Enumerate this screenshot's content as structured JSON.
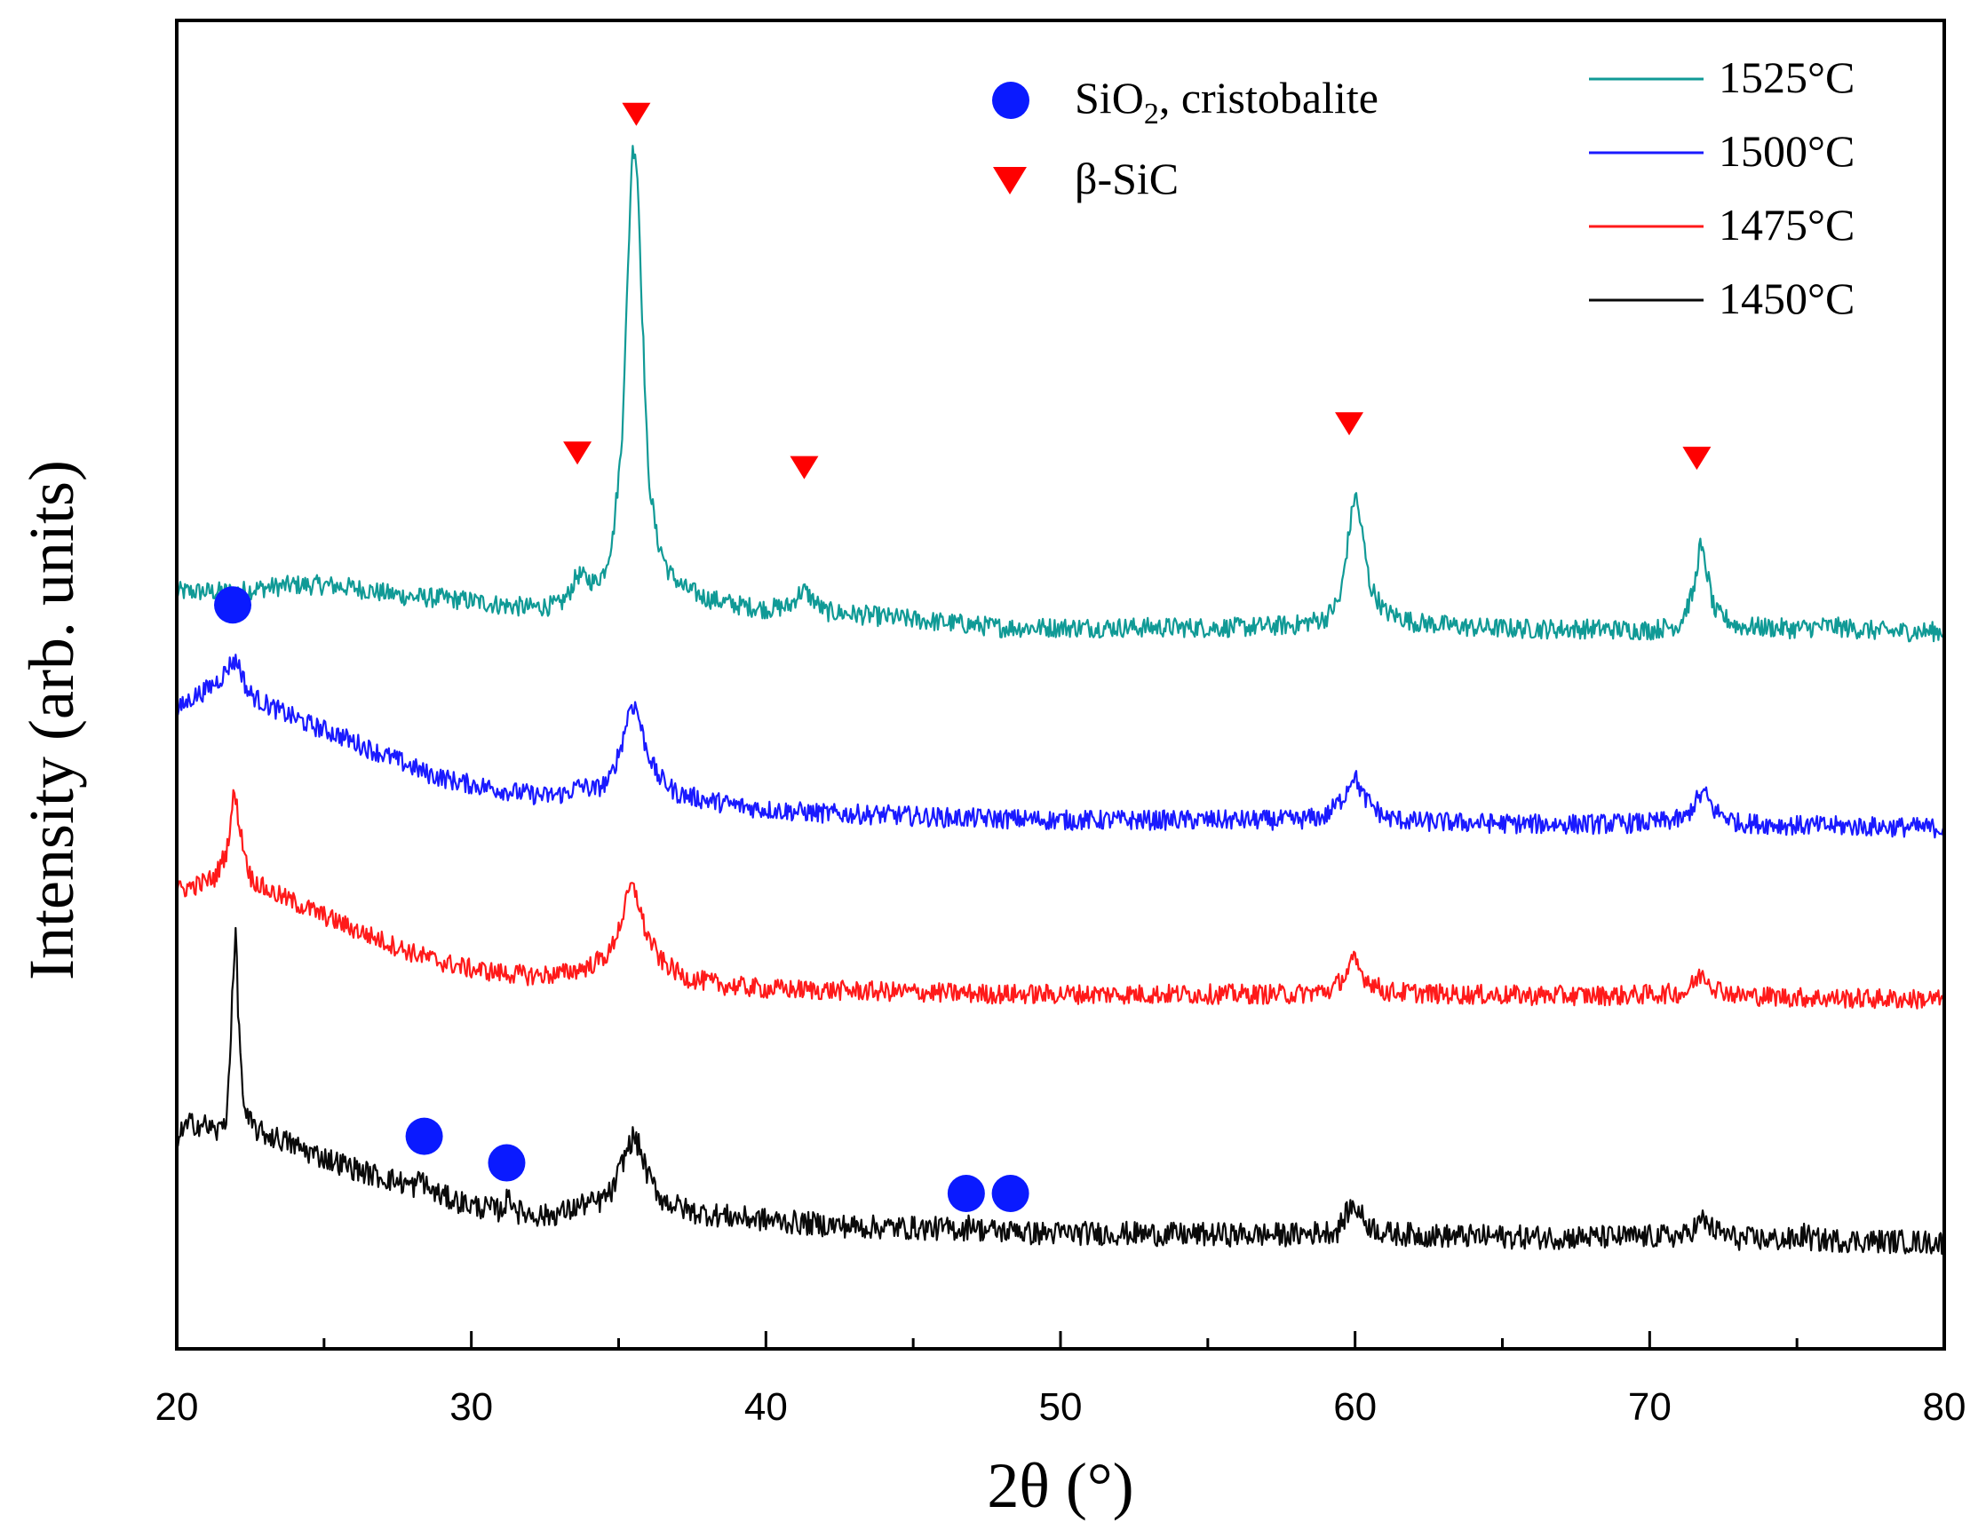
{
  "chart_data": {
    "type": "line",
    "title": "",
    "xlabel": "2θ (°)",
    "ylabel": "Intensity (arb. units)",
    "xlim": [
      20,
      80
    ],
    "ylim": [
      0,
      100
    ],
    "x_ticks": [
      "20",
      "30",
      "40",
      "50",
      "60",
      "70",
      "80"
    ],
    "legend_position": "top-right",
    "series": [
      {
        "name": "1525",
        "unit": "°C",
        "color": "#109a96",
        "offset": 59.0,
        "points": [
          [
            20,
            57
          ],
          [
            21,
            57
          ],
          [
            22,
            57
          ],
          [
            23,
            57.3
          ],
          [
            24,
            57.5
          ],
          [
            25,
            57.5
          ],
          [
            26,
            57.3
          ],
          [
            27,
            56.9
          ],
          [
            28,
            56.6
          ],
          [
            29,
            56.5
          ],
          [
            30,
            56.3
          ],
          [
            31,
            56.0
          ],
          [
            32,
            55.8
          ],
          [
            33,
            56.0
          ],
          [
            33.3,
            56.8
          ],
          [
            33.6,
            58.3
          ],
          [
            33.9,
            58.0
          ],
          [
            34.2,
            57.7
          ],
          [
            34.5,
            58.5
          ],
          [
            34.8,
            61
          ],
          [
            35.1,
            68
          ],
          [
            35.3,
            80
          ],
          [
            35.45,
            90
          ],
          [
            35.55,
            90.5
          ],
          [
            35.65,
            88
          ],
          [
            35.8,
            78
          ],
          [
            36.0,
            66
          ],
          [
            36.3,
            61
          ],
          [
            36.7,
            58.5
          ],
          [
            37.2,
            57.3
          ],
          [
            38,
            56.5
          ],
          [
            39,
            56.0
          ],
          [
            40,
            55.7
          ],
          [
            40.8,
            55.9
          ],
          [
            41.1,
            56.8
          ],
          [
            41.3,
            57.1
          ],
          [
            41.6,
            56.4
          ],
          [
            42,
            55.5
          ],
          [
            44,
            55.1
          ],
          [
            46,
            54.7
          ],
          [
            48,
            54.3
          ],
          [
            50,
            54.3
          ],
          [
            52,
            54.3
          ],
          [
            54,
            54.3
          ],
          [
            56,
            54.3
          ],
          [
            58,
            54.5
          ],
          [
            59,
            55.0
          ],
          [
            59.5,
            56.5
          ],
          [
            59.8,
            61.5
          ],
          [
            60.0,
            64.5
          ],
          [
            60.2,
            62.0
          ],
          [
            60.5,
            57.5
          ],
          [
            61,
            55.5
          ],
          [
            62,
            54.7
          ],
          [
            64,
            54.3
          ],
          [
            66,
            54.2
          ],
          [
            68,
            54.2
          ],
          [
            70,
            54.1
          ],
          [
            71,
            54.5
          ],
          [
            71.5,
            57.0
          ],
          [
            71.7,
            60.5
          ],
          [
            71.9,
            59.0
          ],
          [
            72.2,
            55.5
          ],
          [
            73,
            54.4
          ],
          [
            75,
            54.2
          ],
          [
            76,
            54.4
          ],
          [
            78,
            54.0
          ],
          [
            80,
            54.0
          ]
        ]
      },
      {
        "name": "1500",
        "unit": "°C",
        "color": "#1a1aff",
        "offset": 45.0,
        "points": [
          [
            20,
            48
          ],
          [
            20.5,
            49
          ],
          [
            21,
            49.6
          ],
          [
            21.5,
            50.5
          ],
          [
            21.9,
            51.8
          ],
          [
            22.1,
            51.6
          ],
          [
            22.4,
            49.5
          ],
          [
            22.8,
            48.8
          ],
          [
            23.5,
            48.0
          ],
          [
            24.5,
            47.0
          ],
          [
            25.5,
            46.2
          ],
          [
            26.5,
            45.2
          ],
          [
            27.5,
            44.3
          ],
          [
            28.5,
            43.3
          ],
          [
            29.5,
            42.7
          ],
          [
            30.5,
            42.3
          ],
          [
            31.5,
            41.9
          ],
          [
            32.5,
            41.6
          ],
          [
            33.2,
            41.8
          ],
          [
            33.7,
            42.4
          ],
          [
            34.2,
            42.1
          ],
          [
            34.7,
            42.8
          ],
          [
            35.1,
            45.5
          ],
          [
            35.4,
            48.5
          ],
          [
            35.6,
            48.3
          ],
          [
            35.9,
            45.5
          ],
          [
            36.3,
            43.2
          ],
          [
            37,
            41.8
          ],
          [
            38,
            41.3
          ],
          [
            39,
            40.9
          ],
          [
            40,
            40.6
          ],
          [
            42,
            40.3
          ],
          [
            44,
            40.2
          ],
          [
            46,
            40.0
          ],
          [
            48,
            39.9
          ],
          [
            50,
            39.8
          ],
          [
            52,
            39.8
          ],
          [
            54,
            39.8
          ],
          [
            56,
            39.8
          ],
          [
            58,
            39.8
          ],
          [
            59,
            40.1
          ],
          [
            59.6,
            41.5
          ],
          [
            59.95,
            43.3
          ],
          [
            60.3,
            41.5
          ],
          [
            61,
            40.0
          ],
          [
            62,
            39.7
          ],
          [
            64,
            39.6
          ],
          [
            66,
            39.5
          ],
          [
            68,
            39.5
          ],
          [
            70,
            39.6
          ],
          [
            71.2,
            39.9
          ],
          [
            71.6,
            41.3
          ],
          [
            71.85,
            41.9
          ],
          [
            72.2,
            40.5
          ],
          [
            73,
            39.6
          ],
          [
            75,
            39.4
          ],
          [
            78,
            39.3
          ],
          [
            80,
            39.2
          ]
        ]
      },
      {
        "name": "1475",
        "unit": "°C",
        "color": "#ff1a1a",
        "offset": 31.0,
        "points": [
          [
            20,
            34.5
          ],
          [
            20.8,
            35.0
          ],
          [
            21.3,
            35.5
          ],
          [
            21.7,
            37.5
          ],
          [
            21.95,
            42.0
          ],
          [
            22.2,
            38.5
          ],
          [
            22.5,
            35.5
          ],
          [
            23,
            34.6
          ],
          [
            24,
            33.6
          ],
          [
            25,
            32.6
          ],
          [
            26,
            31.6
          ],
          [
            27,
            30.7
          ],
          [
            28,
            29.8
          ],
          [
            29,
            29.1
          ],
          [
            30,
            28.6
          ],
          [
            31,
            28.3
          ],
          [
            32,
            28.1
          ],
          [
            33,
            28.2
          ],
          [
            34,
            28.8
          ],
          [
            34.7,
            29.8
          ],
          [
            35.1,
            32.3
          ],
          [
            35.4,
            34.8
          ],
          [
            35.6,
            34.3
          ],
          [
            35.9,
            31.5
          ],
          [
            36.4,
            29.3
          ],
          [
            37.2,
            28.0
          ],
          [
            38.5,
            27.4
          ],
          [
            40,
            27.1
          ],
          [
            42,
            27.0
          ],
          [
            44,
            26.9
          ],
          [
            46,
            26.8
          ],
          [
            48,
            26.7
          ],
          [
            50,
            26.7
          ],
          [
            52,
            26.7
          ],
          [
            54,
            26.7
          ],
          [
            56,
            26.7
          ],
          [
            58,
            26.7
          ],
          [
            59.2,
            27.0
          ],
          [
            59.7,
            28.2
          ],
          [
            59.95,
            29.3
          ],
          [
            60.3,
            28.0
          ],
          [
            61,
            26.9
          ],
          [
            63,
            26.7
          ],
          [
            66,
            26.6
          ],
          [
            69,
            26.6
          ],
          [
            71.2,
            26.8
          ],
          [
            71.6,
            27.8
          ],
          [
            71.8,
            28.3
          ],
          [
            72.2,
            27.2
          ],
          [
            73,
            26.6
          ],
          [
            76,
            26.4
          ],
          [
            80,
            26.3
          ]
        ]
      },
      {
        "name": "1450",
        "unit": "°C",
        "color": "#0a0a0a",
        "offset": 16.0,
        "points": [
          [
            20,
            16.0
          ],
          [
            20.5,
            17.0
          ],
          [
            21,
            16.8
          ],
          [
            21.4,
            16.3
          ],
          [
            21.7,
            17.5
          ],
          [
            21.9,
            27.0
          ],
          [
            22.0,
            31.5
          ],
          [
            22.1,
            24.5
          ],
          [
            22.3,
            17.5
          ],
          [
            22.8,
            16.3
          ],
          [
            23.5,
            15.8
          ],
          [
            24.5,
            14.8
          ],
          [
            25.5,
            14.0
          ],
          [
            26.5,
            13.2
          ],
          [
            27.5,
            12.6
          ],
          [
            28.1,
            12.2
          ],
          [
            28.3,
            13.0
          ],
          [
            28.5,
            12.1
          ],
          [
            29,
            11.5
          ],
          [
            30,
            10.8
          ],
          [
            31,
            10.4
          ],
          [
            31.3,
            11.5
          ],
          [
            31.6,
            10.3
          ],
          [
            32.5,
            10.0
          ],
          [
            33.3,
            10.4
          ],
          [
            33.8,
            10.9
          ],
          [
            34.3,
            11.0
          ],
          [
            34.8,
            11.9
          ],
          [
            35.2,
            14.5
          ],
          [
            35.5,
            16.0
          ],
          [
            35.7,
            15.2
          ],
          [
            36,
            13.0
          ],
          [
            36.5,
            11.2
          ],
          [
            37.5,
            10.3
          ],
          [
            39,
            9.9
          ],
          [
            41,
            9.5
          ],
          [
            43,
            9.2
          ],
          [
            45,
            9.1
          ],
          [
            46.8,
            9.0
          ],
          [
            47,
            9.6
          ],
          [
            47.2,
            9.0
          ],
          [
            48.3,
            8.8
          ],
          [
            48.5,
            9.3
          ],
          [
            48.7,
            8.7
          ],
          [
            50,
            8.7
          ],
          [
            52,
            8.7
          ],
          [
            54,
            8.6
          ],
          [
            56,
            8.6
          ],
          [
            58,
            8.6
          ],
          [
            59.4,
            8.9
          ],
          [
            59.8,
            10.5
          ],
          [
            60.0,
            10.8
          ],
          [
            60.4,
            9.4
          ],
          [
            61,
            8.7
          ],
          [
            63,
            8.5
          ],
          [
            66,
            8.4
          ],
          [
            69,
            8.4
          ],
          [
            71.2,
            8.5
          ],
          [
            71.6,
            9.3
          ],
          [
            71.8,
            9.7
          ],
          [
            72.2,
            8.9
          ],
          [
            73,
            8.3
          ],
          [
            75,
            8.2
          ],
          [
            75.3,
            8.7
          ],
          [
            75.5,
            8.2
          ],
          [
            78,
            8.1
          ],
          [
            80,
            8.0
          ]
        ]
      }
    ],
    "markers": {
      "legend": [
        {
          "shape": "circle",
          "label_main": "SiO",
          "label_sub": "2",
          "label_rest": ", cristobalite",
          "color": "#0a1aff"
        },
        {
          "shape": "triangle",
          "label": "β-SiC",
          "color": "#ff0000"
        }
      ],
      "cristobalite_circles": [
        {
          "x": 21.9,
          "y": 56.0
        },
        {
          "x": 28.4,
          "y": 16.0
        },
        {
          "x": 31.2,
          "y": 14.0
        },
        {
          "x": 46.8,
          "y": 11.7
        },
        {
          "x": 48.3,
          "y": 11.7
        }
      ],
      "sic_triangles": [
        {
          "x": 35.6,
          "y": 93.0
        },
        {
          "x": 33.6,
          "y": 67.5
        },
        {
          "x": 41.3,
          "y": 66.4
        },
        {
          "x": 59.8,
          "y": 69.7
        },
        {
          "x": 71.6,
          "y": 67.1
        }
      ]
    }
  }
}
